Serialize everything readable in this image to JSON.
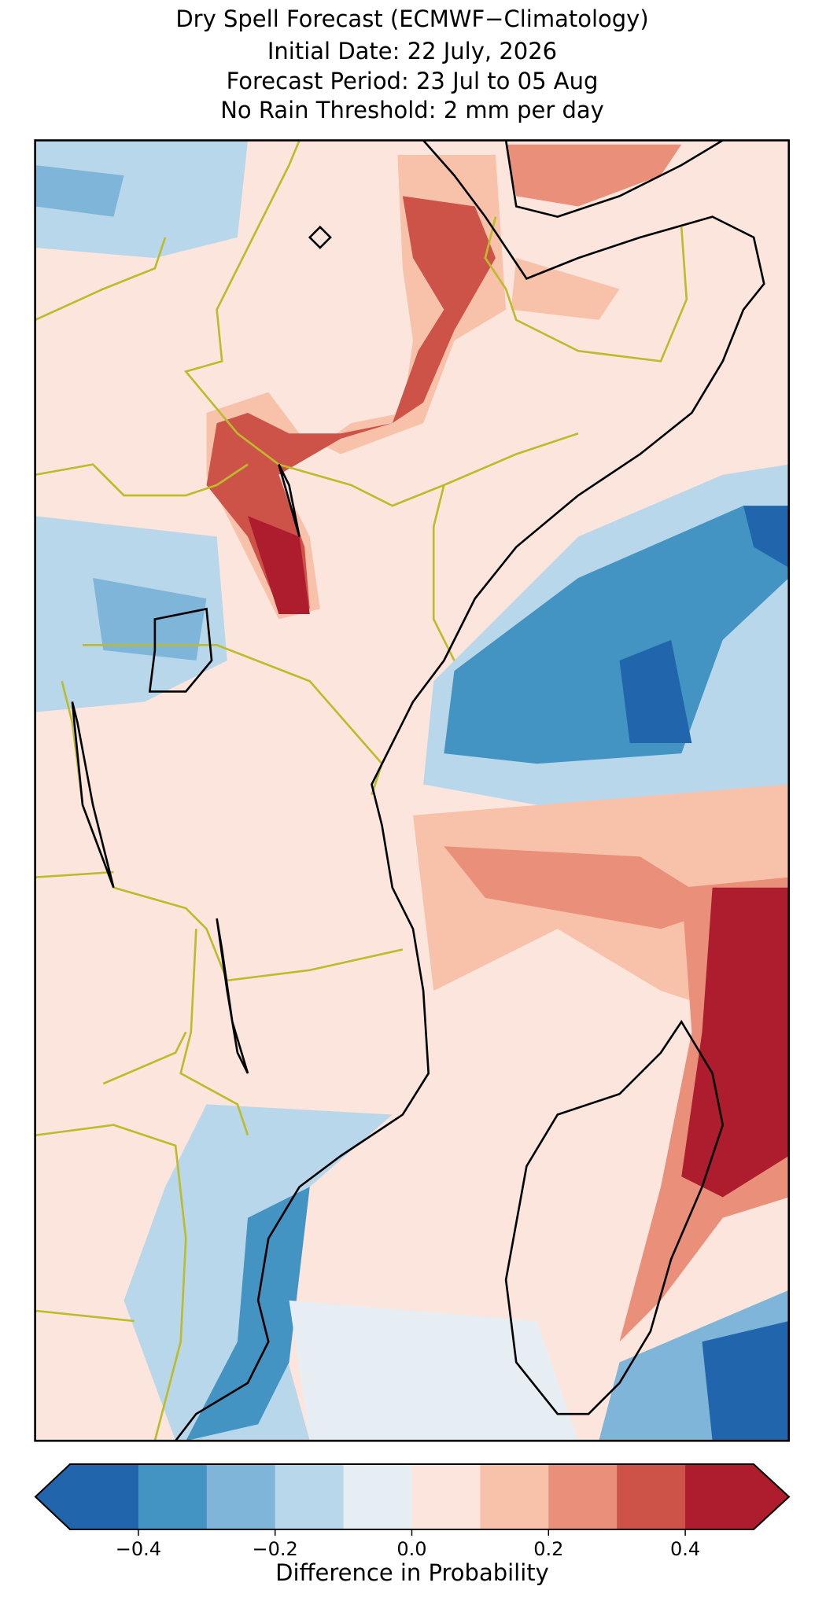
{
  "map": {
    "title_lines": [
      "Dry Spell Forecast (ECMWF−Climatology)",
      "Initial Date: 22 July, 2026",
      "Forecast Period: 23 Jul to 05 Aug",
      "No Rain Threshold: 2 mm per day"
    ],
    "colorbar": {
      "label": "Difference in Probability",
      "bounds": [
        -0.5,
        -0.4,
        -0.3,
        -0.2,
        -0.1,
        0,
        0.1,
        0.2,
        0.3,
        0.4,
        0.5
      ],
      "colors": [
        "#2166ac",
        "#4393c3",
        "#7fb5d8",
        "#b9d7ea",
        "#e6eef4",
        "#fbe5dc",
        "#f8c2aa",
        "#ea907a",
        "#cd5348",
        "#ae1d2e"
      ],
      "extend": "both",
      "ticks": [
        {
          "value": -0.4,
          "label": "−0.4"
        },
        {
          "value": -0.2,
          "label": "−0.2"
        },
        {
          "value": 0,
          "label": "0.0"
        },
        0.2,
        0.4
      ]
    }
  }
}
